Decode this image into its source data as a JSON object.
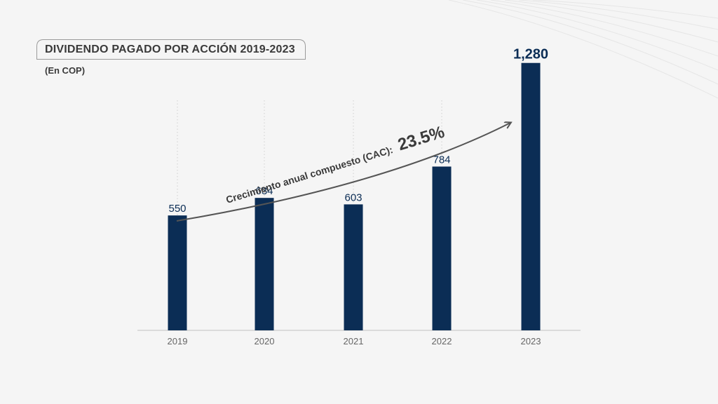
{
  "header": {
    "title": "DIVIDENDO PAGADO POR ACCIÓN 2019-2023",
    "subtitle": "(En COP)"
  },
  "annotation": {
    "label": "Crecimiento anual compuesto (CAC):",
    "value": "23.5%"
  },
  "colors": {
    "bar": "#0b2d55",
    "label": "#0b2d55",
    "axis": "#cccccc",
    "grid": "#cfcfcf",
    "arrow": "#555555",
    "text": "#3a3a3a"
  },
  "chart_data": {
    "type": "bar",
    "categories": [
      "2019",
      "2020",
      "2021",
      "2022",
      "2023"
    ],
    "values": [
      550,
      634,
      603,
      784,
      1280
    ],
    "value_labels": [
      "550",
      "634",
      "603",
      "784",
      "1,280"
    ],
    "title": "DIVIDENDO PAGADO POR ACCIÓN 2019-2023",
    "ylabel": "(En COP)",
    "xlabel": "",
    "ylim": [
      0,
      1400
    ],
    "grid": "vertical-dotted",
    "highlight_index": 4
  }
}
